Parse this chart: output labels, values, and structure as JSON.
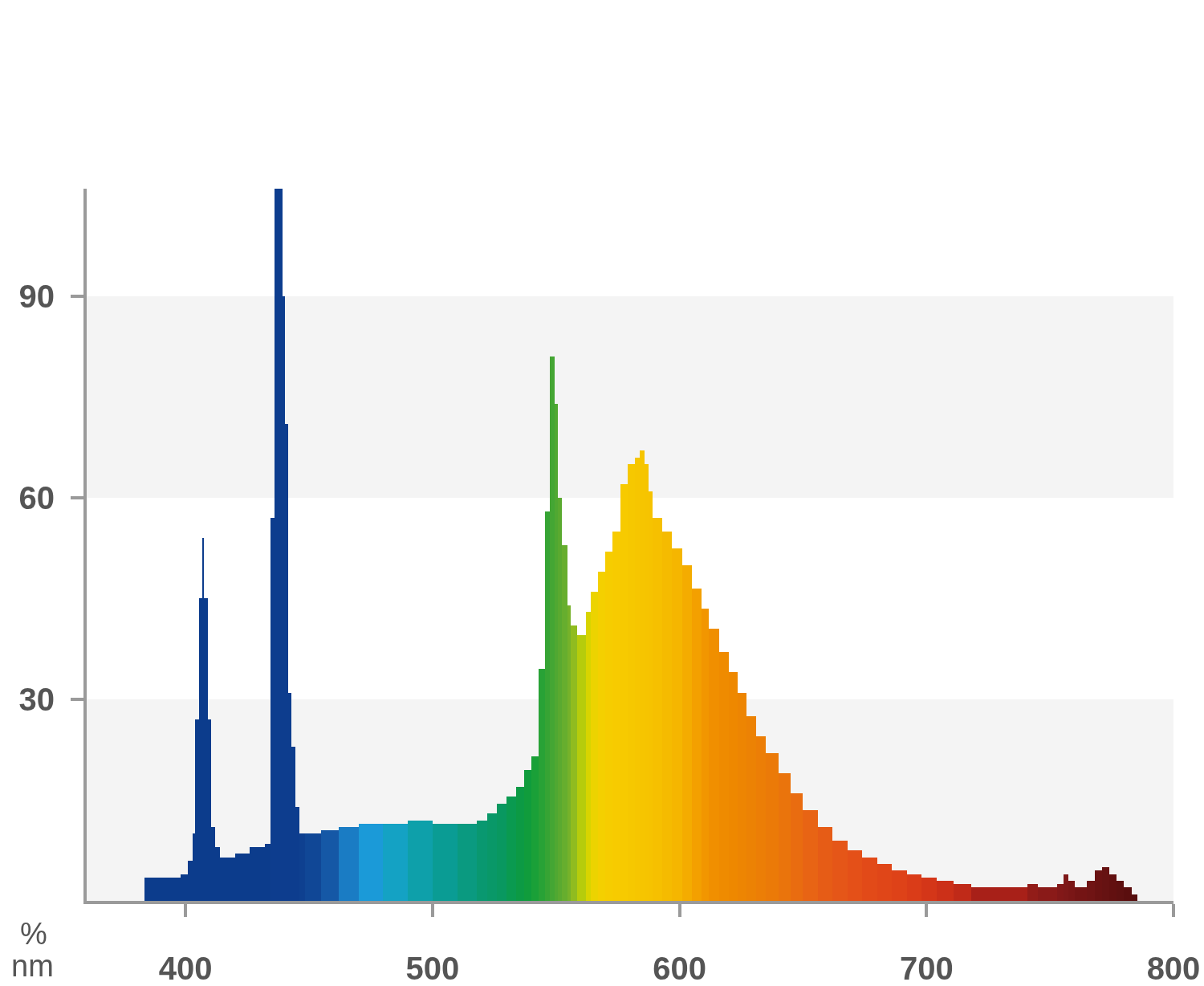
{
  "chart_data": {
    "type": "histogram",
    "xlabel": "nm",
    "ylabel": "%",
    "xlim": [
      360,
      800
    ],
    "xticks": [
      400,
      500,
      600,
      700,
      800
    ],
    "ylim": [
      0,
      106
    ],
    "yticks": [
      30,
      60,
      90
    ],
    "bands": [
      {
        "axis": "y",
        "from": 0,
        "to": 30,
        "color": "#f4f4f4"
      },
      {
        "axis": "y",
        "from": 60,
        "to": 90,
        "color": "#f4f4f4"
      }
    ],
    "bins": [
      383.5,
      398,
      401,
      403,
      404,
      405.5,
      406.8,
      407.6,
      409,
      410.5,
      412,
      414,
      420,
      426,
      432,
      434.3,
      435.9,
      439.2,
      440.4,
      441.5,
      443,
      444.5,
      446,
      448.5,
      455,
      462,
      470,
      480,
      490,
      500,
      510,
      518,
      522,
      526,
      530,
      534,
      537,
      540,
      543,
      545.5,
      547.5,
      549.6,
      550.9,
      552.5,
      554.7,
      556,
      558.5,
      562,
      564,
      567,
      570,
      573,
      576,
      579,
      582,
      584,
      586,
      587.5,
      589,
      593,
      597,
      601,
      605,
      609,
      612,
      616,
      620,
      623.5,
      627,
      631,
      635,
      640,
      645,
      650,
      656,
      662,
      668,
      674,
      680,
      686,
      692,
      698,
      704,
      711,
      718,
      741,
      745,
      753,
      755.5,
      757.5,
      760,
      765,
      768,
      771,
      774,
      777,
      780,
      783,
      785.5
    ],
    "values": [
      3.5,
      4,
      6,
      10,
      27,
      45,
      54,
      45,
      27,
      11,
      8,
      6.5,
      7,
      8,
      8.5,
      57,
      106,
      90,
      71,
      31,
      23,
      14,
      10,
      10,
      10.5,
      11,
      11.5,
      11.5,
      12,
      11.5,
      11.5,
      12,
      13,
      14.5,
      15.5,
      17,
      19.5,
      21.5,
      34.5,
      58,
      81,
      74,
      60,
      53,
      44,
      41,
      39.5,
      43,
      46,
      49,
      52,
      55,
      62,
      65,
      66,
      67,
      65,
      61,
      57,
      55,
      52.5,
      50,
      46.5,
      43.5,
      40.5,
      37,
      34,
      31,
      27.5,
      24.5,
      22,
      19,
      16,
      13.5,
      11,
      9,
      7.5,
      6.5,
      5.5,
      4.5,
      4,
      3.5,
      3,
      2.5,
      2,
      2.5,
      2,
      2.5,
      4,
      3,
      2,
      3,
      4.5,
      5,
      4,
      3,
      2,
      1
    ],
    "colors": [
      "#0c3c8c",
      "#0c3c8c",
      "#0c3c8c",
      "#0c3c8c",
      "#0c3c8c",
      "#0c3c8c",
      "#0c3c8c",
      "#0c3c8c",
      "#0c3c8c",
      "#0c3c8c",
      "#0c3c8c",
      "#0c3c8c",
      "#0c3c8c",
      "#0c3c8c",
      "#0c3c8c",
      "#0d3d8e",
      "#0d3d8e",
      "#0d3d8e",
      "#0d3d8e",
      "#0d3d8e",
      "#0d3d8e",
      "#0d3d8e",
      "#0e4090",
      "#104796",
      "#1558a6",
      "#1a7cc4",
      "#1b9ad8",
      "#14a2c4",
      "#0ea0aa",
      "#0a9c94",
      "#0a9a80",
      "#099870",
      "#099868",
      "#099860",
      "#0a9a50",
      "#0c9a44",
      "#109c3c",
      "#1aa038",
      "#28a236",
      "#36a434",
      "#44a634",
      "#50a832",
      "#5aaa30",
      "#66ae2e",
      "#76b22a",
      "#90bc20",
      "#b6cc0c",
      "#d8d400",
      "#ecd300",
      "#f4d000",
      "#f6cd00",
      "#f7cb00",
      "#f7ca00",
      "#f6c800",
      "#f6c600",
      "#f6c500",
      "#f6c400",
      "#f6c300",
      "#f6c000",
      "#f5bb00",
      "#f5b600",
      "#f4ac00",
      "#f3a000",
      "#f29600",
      "#f08f00",
      "#ef8b00",
      "#ee8800",
      "#ed8502",
      "#ec8204",
      "#ec7e06",
      "#eb7a08",
      "#ea740c",
      "#e96c10",
      "#e86414",
      "#e65c16",
      "#e55618",
      "#e45018",
      "#e24a18",
      "#e04618",
      "#de4218",
      "#da3c18",
      "#d43618",
      "#cc3018",
      "#c02a18",
      "#a82018",
      "#921c18",
      "#8a1a18",
      "#821818",
      "#7e1818",
      "#7a1616",
      "#741414",
      "#701414",
      "#6a1212",
      "#661212",
      "#621010",
      "#5e1010",
      "#5a0e0e",
      "#560e0e"
    ]
  }
}
